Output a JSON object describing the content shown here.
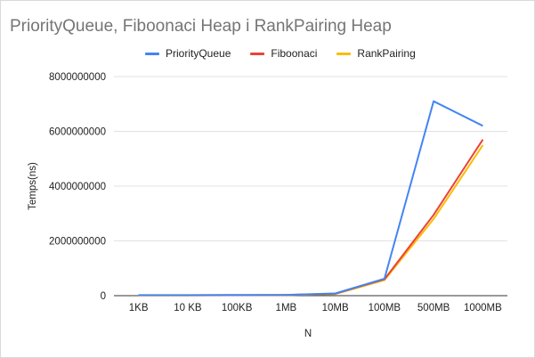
{
  "chart_data": {
    "type": "line",
    "title": "PriorityQueue, Fiboonaci Heap i RankPairing Heap",
    "xlabel": "N",
    "ylabel": "Temps(ns)",
    "categories": [
      "1KB",
      "10 KB",
      "100KB",
      "1MB",
      "10MB",
      "100MB",
      "500MB",
      "1000MB"
    ],
    "ylim": [
      0,
      8000000000
    ],
    "yticks": [
      "0",
      "2000000000",
      "4000000000",
      "6000000000",
      "8000000000"
    ],
    "ytick_values": [
      0,
      2000000000,
      4000000000,
      6000000000,
      8000000000
    ],
    "grid": true,
    "legend_position": "top",
    "series": [
      {
        "name": "PriorityQueue",
        "color": "#4285f4",
        "values": [
          20000000,
          20000000,
          25000000,
          30000000,
          80000000,
          620000000,
          7100000000,
          6200000000
        ]
      },
      {
        "name": "Fiboonaci",
        "color": "#ea4335",
        "values": [
          15000000,
          15000000,
          20000000,
          25000000,
          70000000,
          600000000,
          2950000000,
          5700000000
        ]
      },
      {
        "name": "RankPairing",
        "color": "#fbbc04",
        "values": [
          10000000,
          10000000,
          15000000,
          20000000,
          60000000,
          570000000,
          2800000000,
          5500000000
        ]
      }
    ]
  }
}
